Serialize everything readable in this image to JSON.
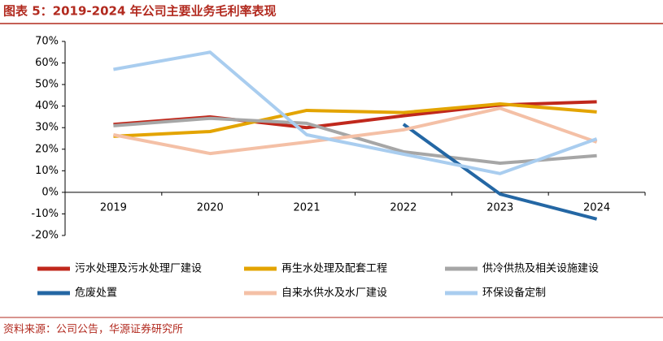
{
  "title": "图表 5：2019-2024 年公司主要业务毛利率表现",
  "source": "资料来源：公司公告，华源证券研究所",
  "chart_data": {
    "type": "line",
    "categories": [
      "2019",
      "2020",
      "2021",
      "2022",
      "2023",
      "2024"
    ],
    "series": [
      {
        "name": "污水处理及污水处理厂建设",
        "color": "#c0281c",
        "values": [
          31.5,
          35,
          30,
          35.5,
          40.5,
          42
        ]
      },
      {
        "name": "再生水处理及配套工程",
        "color": "#e3a400",
        "values": [
          26,
          28.2,
          38,
          37,
          41,
          37.3
        ]
      },
      {
        "name": "供冷供热及相关设施建设",
        "color": "#a6a6a6",
        "values": [
          30.9,
          34.3,
          32,
          18.8,
          13.5,
          17
        ]
      },
      {
        "name": "危废处置",
        "color": "#2467a4",
        "values": [
          null,
          null,
          null,
          31.6,
          -0.8,
          -12.4
        ]
      },
      {
        "name": "自来水供水及水厂建设",
        "color": "#f4c0a6",
        "values": [
          26.7,
          18,
          23.3,
          29,
          39,
          23.3
        ]
      },
      {
        "name": "环保设备定制",
        "color": "#a9cdef",
        "values": [
          57,
          65,
          26.7,
          17.7,
          8.7,
          24.8
        ]
      }
    ],
    "ylim": [
      -20,
      70
    ],
    "yticks": [
      {
        "value": -20,
        "label": "-20%"
      },
      {
        "value": -10,
        "label": "-10%"
      },
      {
        "value": 0,
        "label": "0%"
      },
      {
        "value": 10,
        "label": "10%"
      },
      {
        "value": 20,
        "label": "20%"
      },
      {
        "value": 30,
        "label": "30%"
      },
      {
        "value": 40,
        "label": "40%"
      },
      {
        "value": 50,
        "label": "50%"
      },
      {
        "value": 60,
        "label": "60%"
      },
      {
        "value": 70,
        "label": "70%"
      }
    ],
    "grid": false
  }
}
